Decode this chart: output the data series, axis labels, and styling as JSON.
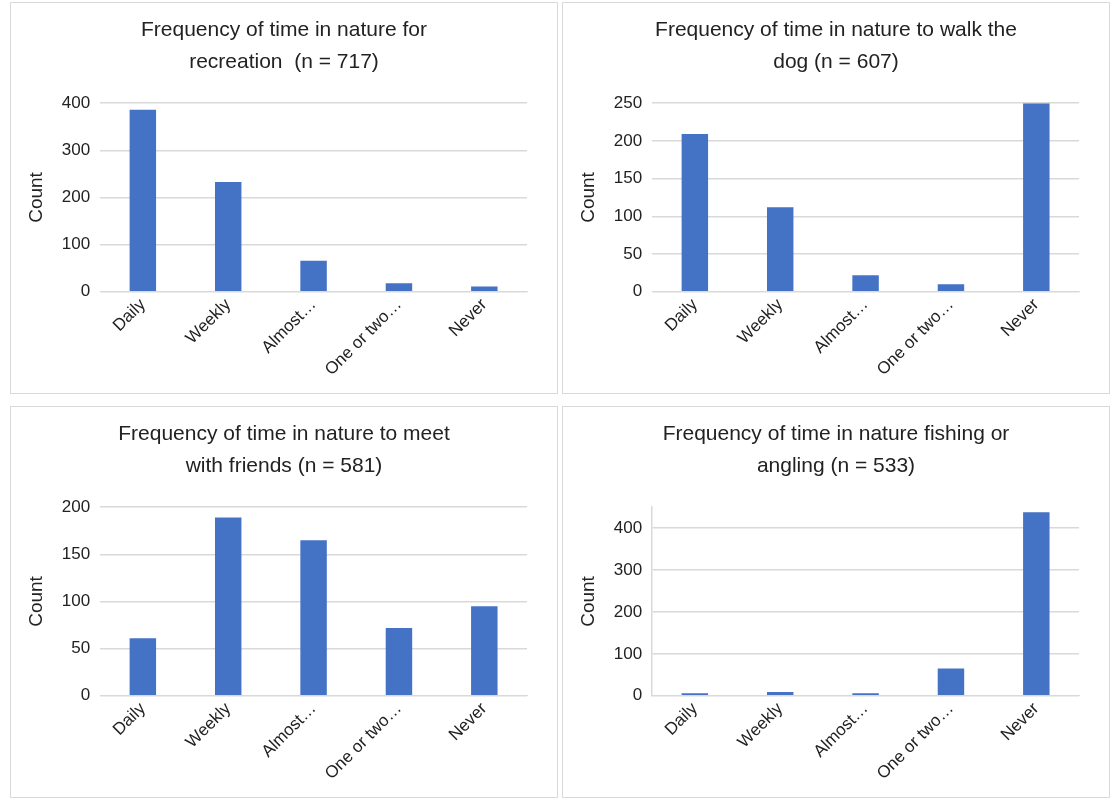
{
  "chart_data": [
    {
      "type": "bar",
      "title": "Frequency of time in nature for recreation  (n = 717)",
      "ylabel": "Count",
      "categories": [
        "Daily",
        "Weekly",
        "Almost…",
        "One or two…",
        "Never"
      ],
      "values": [
        386,
        233,
        66,
        18,
        11
      ],
      "color": "#4472c4",
      "ylim": [
        0,
        400
      ],
      "yticks": [
        0,
        100,
        200,
        300,
        400
      ],
      "grid": "y"
    },
    {
      "type": "bar",
      "title": "Frequency of time in nature to walk the dog (n = 607)",
      "ylabel": "Count",
      "categories": [
        "Daily",
        "Weekly",
        "Almost…",
        "One or two…",
        "Never"
      ],
      "values": [
        209,
        112,
        22,
        10,
        250
      ],
      "color": "#4472c4",
      "ylim": [
        0,
        250
      ],
      "yticks": [
        0,
        50,
        100,
        150,
        200,
        250
      ],
      "grid": "y"
    },
    {
      "type": "bar",
      "title": "Frequency of time in nature to meet with friends (n = 581)",
      "ylabel": "Count",
      "categories": [
        "Daily",
        "Weekly",
        "Almost…",
        "One or two…",
        "Never"
      ],
      "values": [
        61,
        189,
        165,
        72,
        95
      ],
      "color": "#4472c4",
      "ylim": [
        0,
        200
      ],
      "yticks": [
        0,
        50,
        100,
        150,
        200
      ],
      "grid": "y"
    },
    {
      "type": "bar",
      "title": "Frequency of time in nature fishing or angling (n = 533)",
      "ylabel": "Count",
      "categories": [
        "Daily",
        "Weekly",
        "Almost…",
        "One or two…",
        "Never"
      ],
      "values": [
        6,
        9,
        6,
        65,
        438
      ],
      "color": "#4472c4",
      "ylim": [
        0,
        450
      ],
      "yticks": [
        0,
        100,
        200,
        300,
        400
      ],
      "grid": "y"
    }
  ]
}
